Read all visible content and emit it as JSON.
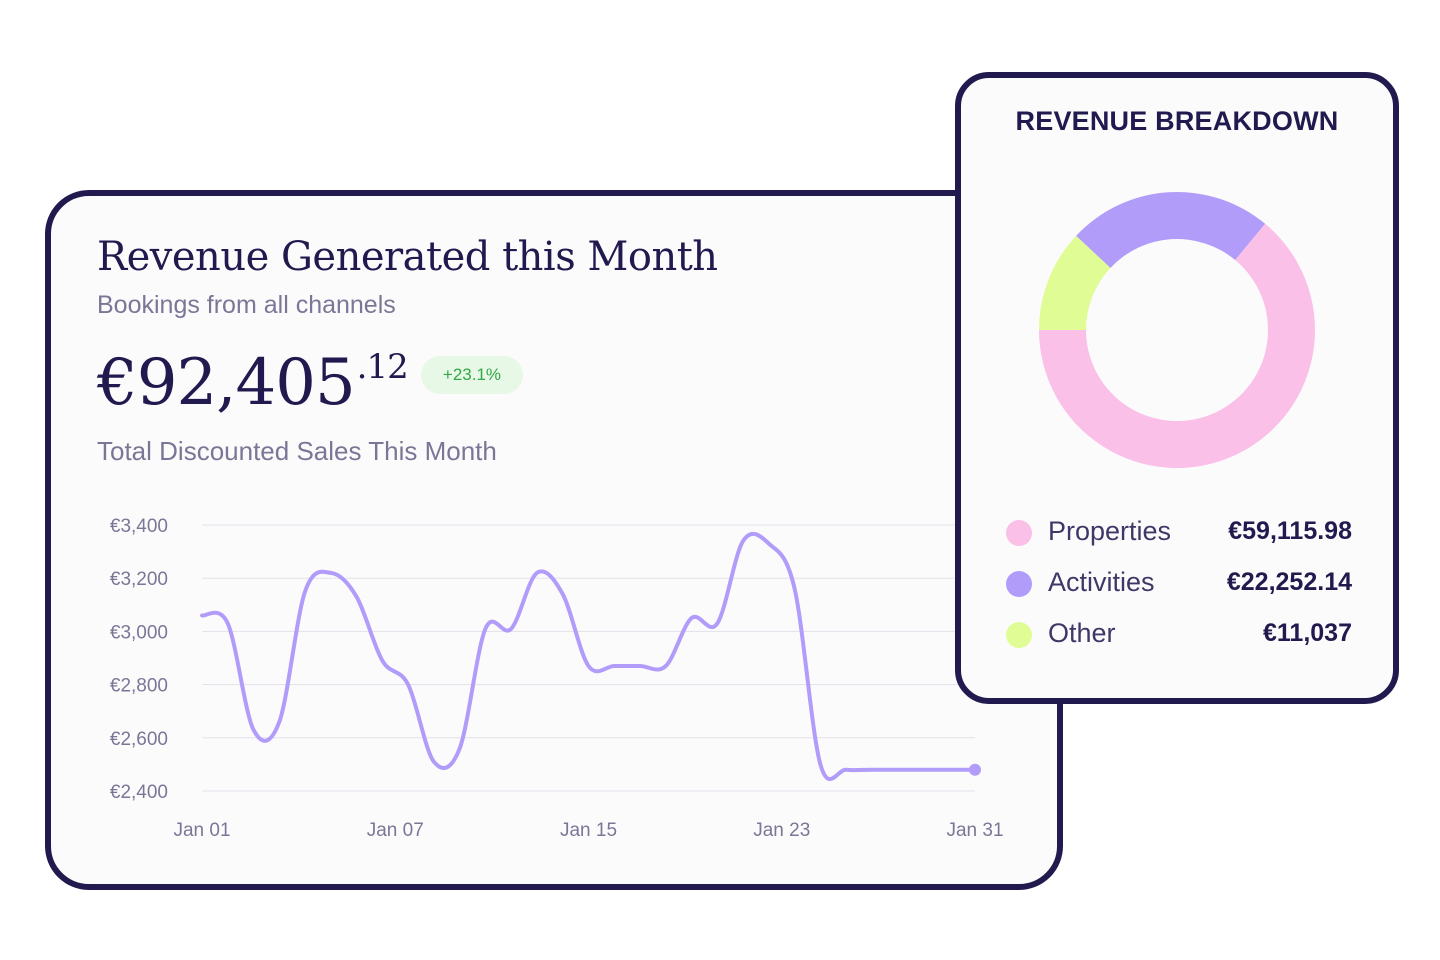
{
  "revenue": {
    "title": "Revenue Generated this Month",
    "subtitle": "Bookings from all channels",
    "amount_main": "€92,405",
    "amount_cents": ".12",
    "change_badge": "+23.1%",
    "total_label": "Total Discounted Sales This Month"
  },
  "chart_data": {
    "type": "line",
    "title": "",
    "xlabel": "",
    "ylabel": "",
    "y_ticks": [
      "€3,400",
      "€3,200",
      "€3,000",
      "€2,800",
      "€2,600",
      "€2,400"
    ],
    "x_ticks": [
      "Jan 01",
      "Jan 07",
      "Jan 15",
      "Jan 23",
      "Jan 31"
    ],
    "ylim": [
      2400,
      3400
    ],
    "xlim": [
      1,
      31
    ],
    "grid": true,
    "line_color": "#b19cf9",
    "series": [
      {
        "x": [
          1,
          2,
          3,
          4,
          5,
          6,
          7,
          8,
          9,
          10,
          11,
          12,
          13,
          14,
          15,
          16,
          17,
          18,
          19,
          20,
          21,
          22,
          23,
          24,
          25,
          26,
          27,
          28,
          29,
          30,
          31
        ],
        "values": [
          3060,
          3030,
          2630,
          2660,
          3150,
          3220,
          3130,
          2890,
          2800,
          2510,
          2560,
          3010,
          3010,
          3220,
          3140,
          2870,
          2870,
          2870,
          2870,
          3050,
          3030,
          3340,
          3330,
          3160,
          2500,
          2480,
          2480,
          2480,
          2480,
          2480,
          2480
        ]
      }
    ]
  },
  "breakdown": {
    "title": "REVENUE BREAKDOWN",
    "items": [
      {
        "label": "Properties",
        "value": "€59,115.98",
        "amount": 59115.98,
        "color": "#fac0e8"
      },
      {
        "label": "Activities",
        "value": "€22,252.14",
        "amount": 22252.14,
        "color": "#b19cf9"
      },
      {
        "label": "Other",
        "value": "€11,037",
        "amount": 11037,
        "color": "#dffd94"
      }
    ]
  }
}
